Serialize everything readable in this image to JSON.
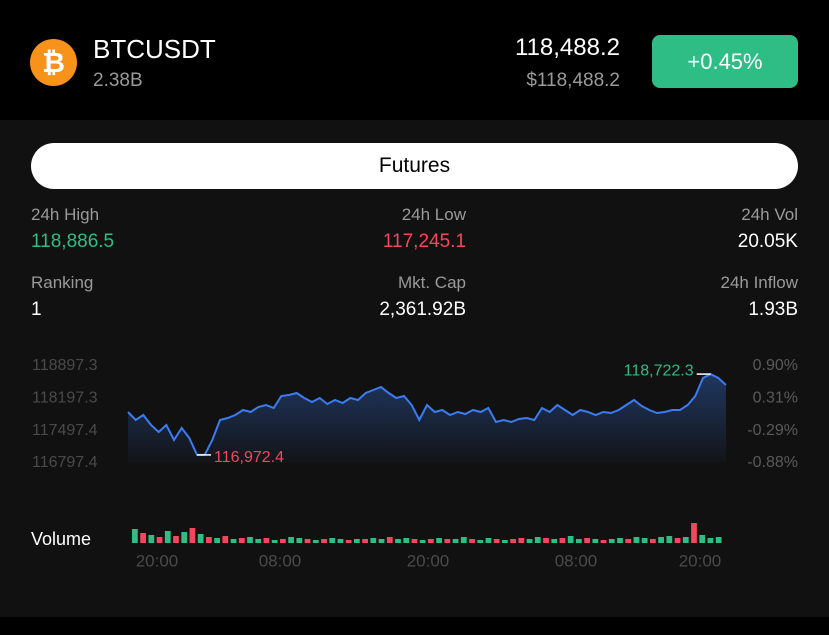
{
  "header": {
    "icon": "₿",
    "symbol": "BTCUSDT",
    "volume": "2.38B",
    "price": "118,488.2",
    "price_usd": "$118,488.2",
    "change": "+0.45%"
  },
  "tab": "Futures",
  "stats": [
    {
      "label": "24h High",
      "value": "118,886.5",
      "tone": "up"
    },
    {
      "label": "24h Low",
      "value": "117,245.1",
      "tone": "down"
    },
    {
      "label": "24h Vol",
      "value": "20.05K",
      "tone": "plain"
    },
    {
      "label": "Ranking",
      "value": "1",
      "tone": "plain"
    },
    {
      "label": "Mkt. Cap",
      "value": "2,361.92B",
      "tone": "plain"
    },
    {
      "label": "24h Inflow",
      "value": "1.93B",
      "tone": "plain"
    }
  ],
  "chart_data": {
    "type": "line",
    "color": "#3b7cf2",
    "values": [
      117901,
      117728,
      117837,
      117620,
      117469,
      117620,
      117295,
      117555,
      117339,
      116972.4,
      116972.4,
      117295,
      117728,
      117771,
      117837,
      117945,
      117901,
      118010,
      118053,
      117988,
      118248,
      118270,
      118313,
      118205,
      118118,
      118205,
      118075,
      118161,
      118096,
      118205,
      118161,
      118313,
      118378,
      118443,
      118313,
      118205,
      118248,
      118053,
      117728,
      118053,
      117901,
      117945,
      117837,
      117901,
      117858,
      117945,
      117901,
      117988,
      117685,
      117728,
      117685,
      117750,
      117771,
      117728,
      117988,
      117901,
      118053,
      117945,
      117837,
      117945,
      117901,
      117837,
      117901,
      117880,
      117945,
      118053,
      118161,
      118032,
      117945,
      117880,
      117901,
      117945,
      117945,
      118053,
      118248,
      118637,
      118722.3,
      118637,
      118486
    ],
    "ylim": [
      116797.4,
      118897.3
    ],
    "yticks": [
      118897.3,
      118197.3,
      117497.4,
      116797.4
    ],
    "y2lim": [
      -0.88,
      0.9
    ],
    "y2ticks": [
      {
        "value": 0.9,
        "label": "0.90%"
      },
      {
        "value": 0.31,
        "label": "0.31%"
      },
      {
        "value": -0.29,
        "label": "-0.29%"
      },
      {
        "value": -0.88,
        "label": "-0.88%"
      }
    ],
    "min_label": {
      "value": 116972.4,
      "label": "116,972.4",
      "color": "#f6465d"
    },
    "max_label": {
      "value": 118722.3,
      "label": "118,722.3",
      "color": "#2ebd85"
    },
    "x_labels": [
      "20:00",
      "08:00",
      "20:00",
      "08:00",
      "20:00"
    ],
    "volume": {
      "label": "Volume",
      "values": [
        14,
        10,
        8,
        6,
        12,
        7,
        11,
        15,
        9,
        6,
        5,
        7,
        4,
        5,
        6,
        4,
        5,
        3,
        4,
        6,
        5,
        4,
        3,
        4,
        5,
        4,
        3,
        4,
        4,
        5,
        4,
        6,
        4,
        5,
        4,
        3,
        4,
        5,
        4,
        4,
        6,
        4,
        3,
        5,
        4,
        3,
        4,
        5,
        4,
        6,
        5,
        4,
        5,
        7,
        4,
        5,
        4,
        3,
        4,
        5,
        4,
        6,
        5,
        4,
        6,
        7,
        5,
        6,
        20,
        8,
        5,
        6
      ],
      "colors": [
        "#2ebd85",
        "#f6465d",
        "#2ebd85",
        "#f6465d",
        "#2ebd85",
        "#f6465d",
        "#2ebd85",
        "#f6465d",
        "#2ebd85",
        "#f6465d",
        "#2ebd85",
        "#f6465d",
        "#2ebd85",
        "#f6465d",
        "#2ebd85",
        "#2ebd85",
        "#f6465d",
        "#2ebd85",
        "#f6465d",
        "#2ebd85",
        "#2ebd85",
        "#f6465d",
        "#2ebd85",
        "#f6465d",
        "#2ebd85",
        "#2ebd85",
        "#f6465d",
        "#2ebd85",
        "#f6465d",
        "#2ebd85",
        "#2ebd85",
        "#f6465d",
        "#2ebd85",
        "#2ebd85",
        "#f6465d",
        "#2ebd85",
        "#f6465d",
        "#2ebd85",
        "#f6465d",
        "#2ebd85",
        "#2ebd85",
        "#f6465d",
        "#2ebd85",
        "#2ebd85",
        "#f6465d",
        "#2ebd85",
        "#f6465d",
        "#f6465d",
        "#2ebd85",
        "#2ebd85",
        "#f6465d",
        "#2ebd85",
        "#f6465d",
        "#2ebd85",
        "#2ebd85",
        "#f6465d",
        "#2ebd85",
        "#f6465d",
        "#2ebd85",
        "#2ebd85",
        "#f6465d",
        "#2ebd85",
        "#2ebd85",
        "#f6465d",
        "#2ebd85",
        "#2ebd85",
        "#f6465d",
        "#2ebd85",
        "#f6465d",
        "#2ebd85",
        "#2ebd85",
        "#2ebd85"
      ]
    }
  }
}
